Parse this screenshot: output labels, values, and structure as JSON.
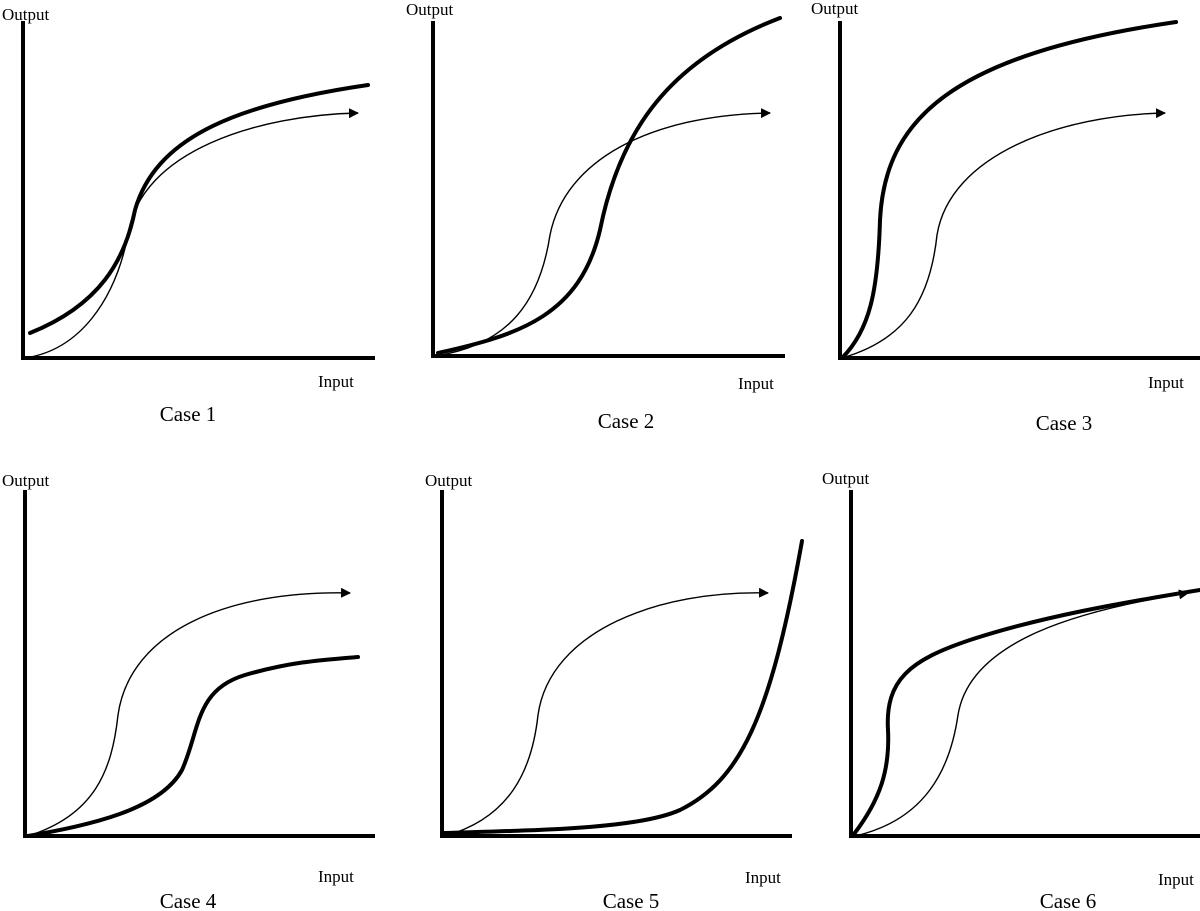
{
  "panels": [
    {
      "output_label": "Output",
      "input_label": "Input",
      "caption": "Case 1"
    },
    {
      "output_label": "Output",
      "input_label": "Input",
      "caption": "Case 2"
    },
    {
      "output_label": "Output",
      "input_label": "Input",
      "caption": "Case 3"
    },
    {
      "output_label": "Output",
      "input_label": "Input",
      "caption": "Case 4"
    },
    {
      "output_label": "Output",
      "input_label": "Input",
      "caption": "Case 5"
    },
    {
      "output_label": "Output",
      "input_label": "Input",
      "caption": "Case 6"
    }
  ]
}
